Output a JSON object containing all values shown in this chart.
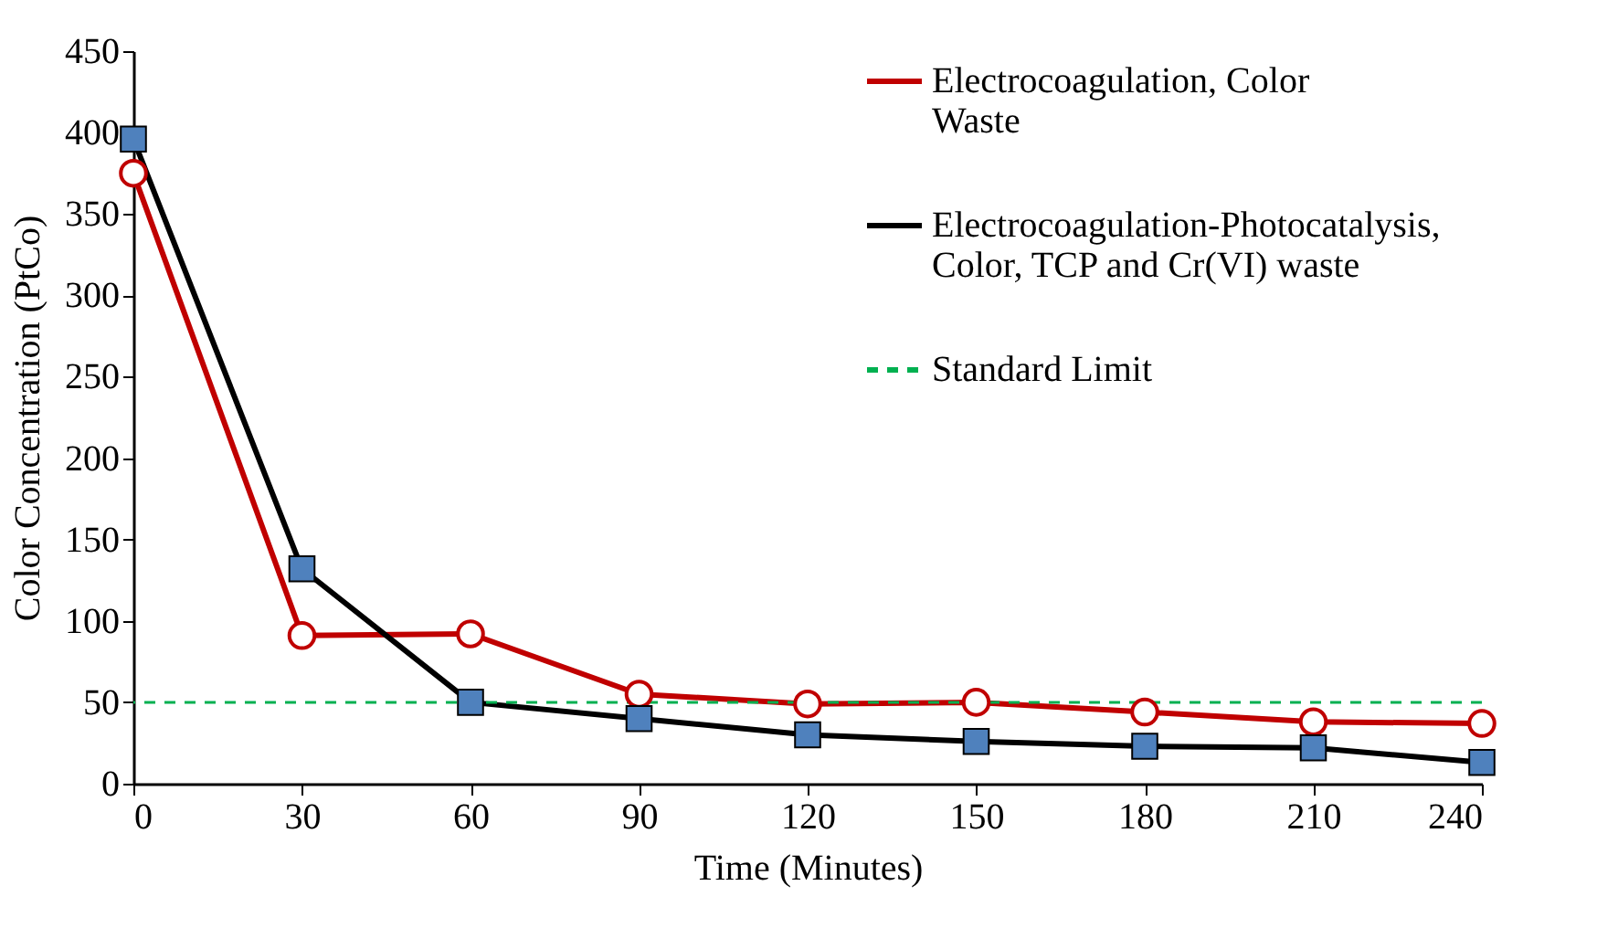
{
  "chart_data": {
    "type": "line",
    "xlabel": "Time (Minutes)",
    "ylabel": "Color Concentration (PtCo)",
    "x": [
      0,
      30,
      60,
      90,
      120,
      150,
      180,
      210,
      240
    ],
    "series": [
      {
        "name": "Electrocoagulation, Color Waste",
        "color": "#c00000",
        "marker": "circle",
        "values": [
          375,
          91,
          92,
          55,
          49,
          50,
          44,
          38,
          37
        ]
      },
      {
        "name": "Electrocoagulation-Photocatalysis, Color, TCP and Cr(VI) waste",
        "color": "#000000",
        "marker": "square",
        "values": [
          396,
          132,
          50,
          40,
          30,
          26,
          23,
          22,
          13
        ]
      }
    ],
    "ref_lines": [
      {
        "axis": "y",
        "value": 50,
        "label": "Standard Limit",
        "color": "#00b050",
        "line_style": "dashed"
      }
    ],
    "xlim": [
      0,
      240
    ],
    "xticks": [
      0,
      30,
      60,
      90,
      120,
      150,
      180,
      210,
      240
    ],
    "ylim": [
      0,
      450
    ],
    "yticks": [
      0,
      50,
      100,
      150,
      200,
      250,
      300,
      350,
      400,
      450
    ],
    "grid": false,
    "legend": "top right",
    "line_style": "solid"
  }
}
